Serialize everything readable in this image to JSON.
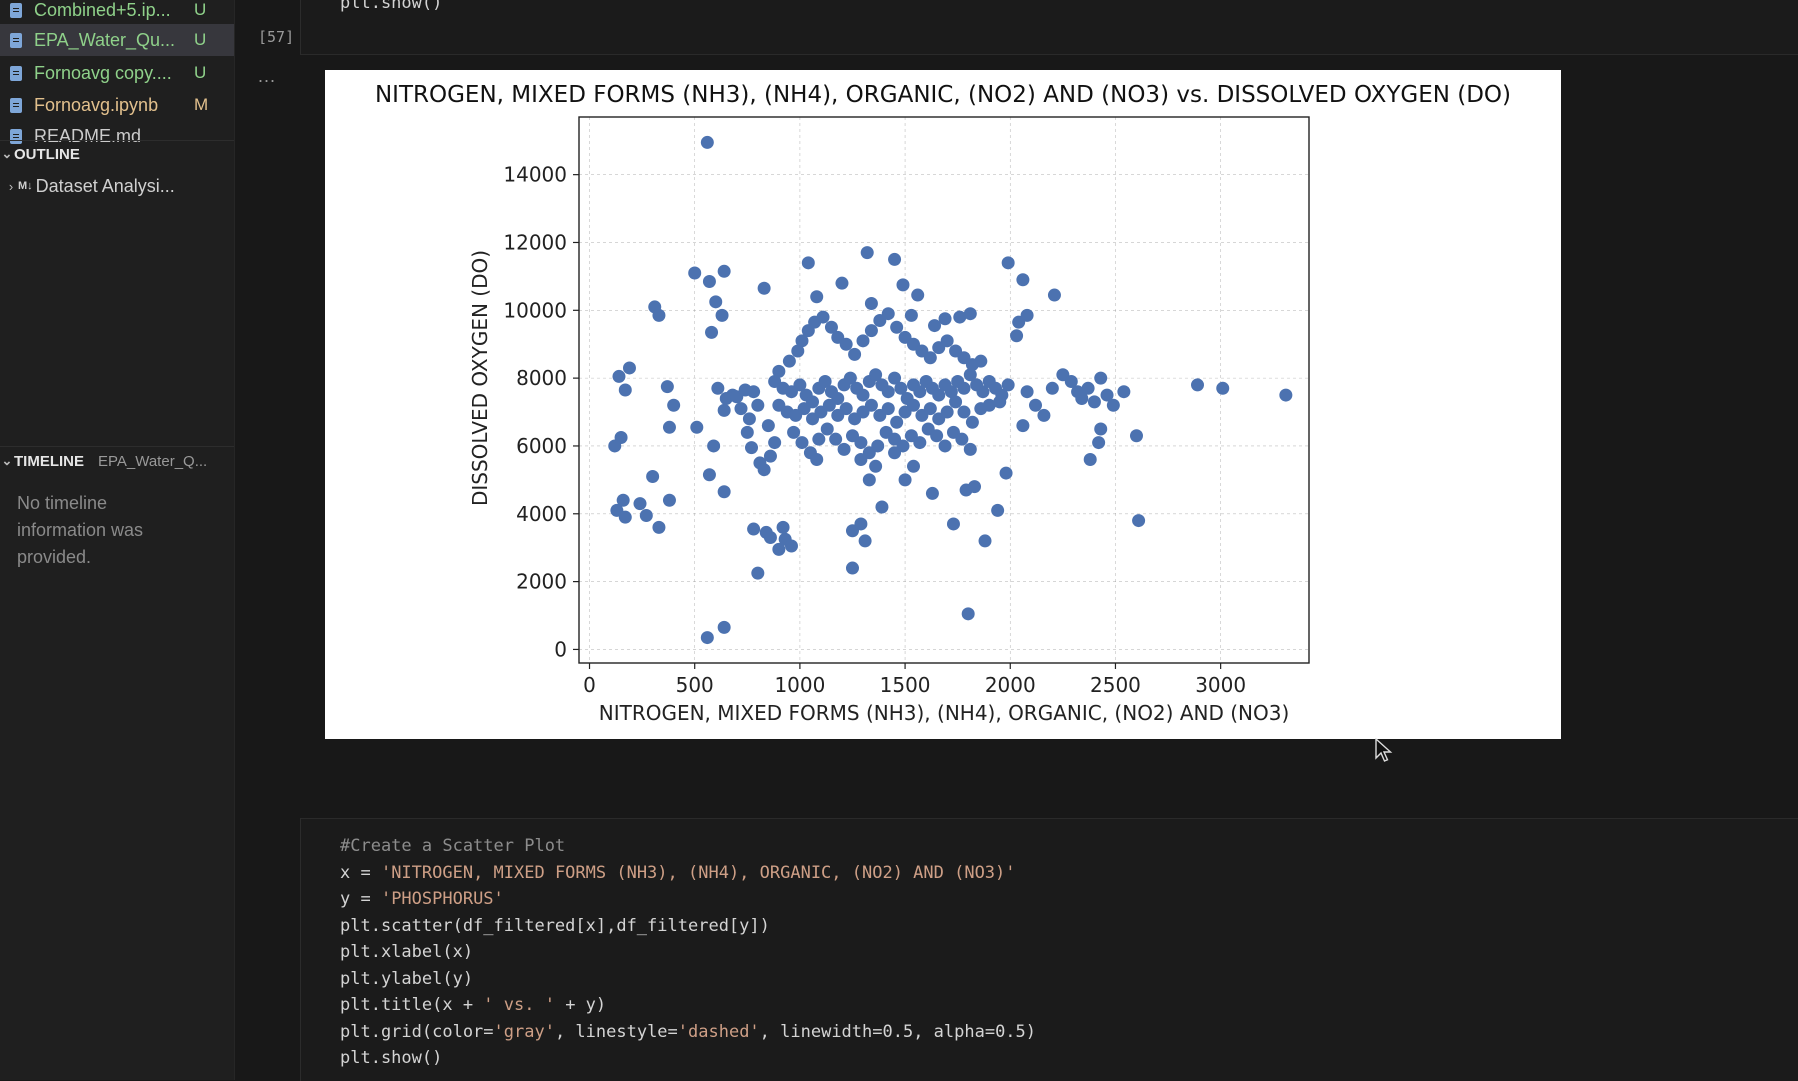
{
  "explorer": {
    "files": [
      {
        "name": "Combined+5.ip...",
        "status": "U",
        "status_color": "#8fd18a",
        "name_color": "#8fd18a",
        "active": false
      },
      {
        "name": "EPA_Water_Qu...",
        "status": "U",
        "status_color": "#8fd18a",
        "name_color": "#8fd18a",
        "active": true
      },
      {
        "name": "Fornoavg copy....",
        "status": "U",
        "status_color": "#8fd18a",
        "name_color": "#8fd18a",
        "active": false
      },
      {
        "name": "Fornoavg.ipynb",
        "status": "M",
        "status_color": "#e2c08d",
        "name_color": "#e2c08d",
        "active": false
      },
      {
        "name": "README.md",
        "status": "",
        "status_color": "#8fd18a",
        "name_color": "#cccccc",
        "active": false
      }
    ]
  },
  "outline": {
    "header": "OUTLINE",
    "item_badge": "M↓",
    "item_label": "Dataset Analysi..."
  },
  "timeline": {
    "header": "TIMELINE",
    "file": "EPA_Water_Q...",
    "message": "No timeline information was provided."
  },
  "cell_top": {
    "code": "plt.show()",
    "execution_count": "[57]",
    "output_more": "..."
  },
  "cell_bottom": {
    "lines": [
      [
        {
          "t": "#Create a Scatter Plot",
          "c": "cm"
        }
      ],
      [
        {
          "t": "x = "
        },
        {
          "t": "'NITROGEN, MIXED FORMS (NH3), (NH4), ORGANIC, (NO2) AND (NO3)'",
          "c": "str"
        }
      ],
      [
        {
          "t": "y = "
        },
        {
          "t": "'PHOSPHORUS'",
          "c": "str"
        }
      ],
      [
        {
          "t": "plt.scatter(df_filtered[x],df_filtered[y])"
        }
      ],
      [
        {
          "t": "plt.xlabel(x)"
        }
      ],
      [
        {
          "t": "plt.ylabel(y)"
        }
      ],
      [
        {
          "t": "plt.title(x + "
        },
        {
          "t": "' vs. '",
          "c": "str"
        },
        {
          "t": " + y)"
        }
      ],
      [
        {
          "t": "plt.grid(color="
        },
        {
          "t": "'gray'",
          "c": "str"
        },
        {
          "t": ", linestyle="
        },
        {
          "t": "'dashed'",
          "c": "str"
        },
        {
          "t": ", linewidth=0.5, alpha=0.5)"
        }
      ],
      [
        {
          "t": "plt.show()"
        }
      ]
    ]
  },
  "chart_data": {
    "type": "scatter",
    "title": "NITROGEN, MIXED FORMS (NH3), (NH4), ORGANIC, (NO2) AND (NO3) vs. DISSOLVED OXYGEN (DO)",
    "xlabel": "NITROGEN, MIXED FORMS (NH3), (NH4), ORGANIC, (NO2) AND (NO3)",
    "ylabel": "DISSOLVED OXYGEN (DO)",
    "xlim": [
      -50,
      3420
    ],
    "ylim": [
      -400,
      15700
    ],
    "xticks": [
      0,
      500,
      1000,
      1500,
      2000,
      2500,
      3000
    ],
    "yticks": [
      0,
      2000,
      4000,
      6000,
      8000,
      10000,
      12000,
      14000
    ],
    "grid": true,
    "grid_color": "#808080",
    "marker_color": "#4c72b0",
    "series": [
      {
        "points": [
          [
            560,
            14950
          ],
          [
            500,
            11100
          ],
          [
            640,
            11150
          ],
          [
            570,
            10850
          ],
          [
            310,
            10100
          ],
          [
            330,
            9850
          ],
          [
            600,
            10250
          ],
          [
            630,
            9850
          ],
          [
            580,
            9350
          ],
          [
            1040,
            11400
          ],
          [
            1320,
            11700
          ],
          [
            1450,
            11500
          ],
          [
            1990,
            11400
          ],
          [
            2060,
            10900
          ],
          [
            2210,
            10450
          ],
          [
            1200,
            10800
          ],
          [
            1490,
            10750
          ],
          [
            1340,
            10200
          ],
          [
            1560,
            10450
          ],
          [
            1080,
            10400
          ],
          [
            1810,
            9900
          ],
          [
            1760,
            9800
          ],
          [
            2040,
            9650
          ],
          [
            2030,
            9250
          ],
          [
            2080,
            9850
          ],
          [
            830,
            10650
          ],
          [
            1640,
            9550
          ],
          [
            140,
            8050
          ],
          [
            170,
            7650
          ],
          [
            190,
            8300
          ],
          [
            370,
            7750
          ],
          [
            400,
            7200
          ],
          [
            380,
            6550
          ],
          [
            510,
            6550
          ],
          [
            150,
            6250
          ],
          [
            120,
            6000
          ],
          [
            160,
            4400
          ],
          [
            130,
            4100
          ],
          [
            170,
            3900
          ],
          [
            240,
            4300
          ],
          [
            270,
            3950
          ],
          [
            330,
            3600
          ],
          [
            380,
            4400
          ],
          [
            300,
            5100
          ],
          [
            640,
            4650
          ],
          [
            590,
            6000
          ],
          [
            570,
            5150
          ],
          [
            610,
            7700
          ],
          [
            650,
            7400
          ],
          [
            640,
            7050
          ],
          [
            680,
            7500
          ],
          [
            700,
            7450
          ],
          [
            740,
            7650
          ],
          [
            780,
            7600
          ],
          [
            800,
            7200
          ],
          [
            850,
            6600
          ],
          [
            880,
            6100
          ],
          [
            860,
            5700
          ],
          [
            810,
            5500
          ],
          [
            830,
            5300
          ],
          [
            770,
            5950
          ],
          [
            750,
            6400
          ],
          [
            760,
            6800
          ],
          [
            720,
            7100
          ],
          [
            780,
            3550
          ],
          [
            840,
            3450
          ],
          [
            860,
            3300
          ],
          [
            900,
            2950
          ],
          [
            930,
            3250
          ],
          [
            960,
            3050
          ],
          [
            920,
            3600
          ],
          [
            800,
            2250
          ],
          [
            560,
            350
          ],
          [
            640,
            650
          ],
          [
            900,
            8200
          ],
          [
            950,
            8500
          ],
          [
            990,
            8800
          ],
          [
            1010,
            9100
          ],
          [
            1040,
            9400
          ],
          [
            1070,
            9650
          ],
          [
            1110,
            9800
          ],
          [
            1150,
            9500
          ],
          [
            1180,
            9200
          ],
          [
            1220,
            9000
          ],
          [
            1260,
            8700
          ],
          [
            1300,
            9100
          ],
          [
            1340,
            9400
          ],
          [
            1380,
            9700
          ],
          [
            1420,
            9900
          ],
          [
            1460,
            9500
          ],
          [
            1500,
            9200
          ],
          [
            1540,
            9000
          ],
          [
            1580,
            8800
          ],
          [
            1620,
            8600
          ],
          [
            1660,
            8900
          ],
          [
            1700,
            9100
          ],
          [
            1740,
            8800
          ],
          [
            1780,
            8600
          ],
          [
            1820,
            8400
          ],
          [
            1860,
            8500
          ],
          [
            1690,
            9750
          ],
          [
            1530,
            9850
          ],
          [
            880,
            7900
          ],
          [
            920,
            7700
          ],
          [
            960,
            7600
          ],
          [
            1000,
            7800
          ],
          [
            1030,
            7500
          ],
          [
            1060,
            7300
          ],
          [
            1090,
            7700
          ],
          [
            1120,
            7900
          ],
          [
            1150,
            7600
          ],
          [
            1180,
            7400
          ],
          [
            1210,
            7800
          ],
          [
            1240,
            8000
          ],
          [
            1270,
            7700
          ],
          [
            1300,
            7500
          ],
          [
            1330,
            7900
          ],
          [
            1360,
            8100
          ],
          [
            1390,
            7800
          ],
          [
            1420,
            7600
          ],
          [
            1450,
            8000
          ],
          [
            1480,
            7700
          ],
          [
            1510,
            7400
          ],
          [
            1540,
            7800
          ],
          [
            1570,
            7600
          ],
          [
            1600,
            7900
          ],
          [
            1630,
            7700
          ],
          [
            1660,
            7500
          ],
          [
            1690,
            7800
          ],
          [
            1720,
            7600
          ],
          [
            1750,
            7900
          ],
          [
            1780,
            7700
          ],
          [
            1810,
            8100
          ],
          [
            1840,
            7800
          ],
          [
            1870,
            7600
          ],
          [
            1900,
            7900
          ],
          [
            1930,
            7700
          ],
          [
            1960,
            7500
          ],
          [
            1990,
            7800
          ],
          [
            900,
            7200
          ],
          [
            940,
            7000
          ],
          [
            980,
            6900
          ],
          [
            1020,
            7100
          ],
          [
            1060,
            6800
          ],
          [
            1100,
            7000
          ],
          [
            1140,
            7200
          ],
          [
            1180,
            6900
          ],
          [
            1220,
            7100
          ],
          [
            1260,
            6800
          ],
          [
            1300,
            7000
          ],
          [
            1340,
            7200
          ],
          [
            1380,
            6900
          ],
          [
            1420,
            7100
          ],
          [
            1460,
            6700
          ],
          [
            1500,
            7000
          ],
          [
            1540,
            7200
          ],
          [
            1580,
            6900
          ],
          [
            1620,
            7100
          ],
          [
            1660,
            6800
          ],
          [
            1700,
            7000
          ],
          [
            1740,
            7300
          ],
          [
            1780,
            7000
          ],
          [
            1820,
            6700
          ],
          [
            1860,
            7100
          ],
          [
            1900,
            7200
          ],
          [
            1950,
            7300
          ],
          [
            970,
            6400
          ],
          [
            1010,
            6100
          ],
          [
            1050,
            5800
          ],
          [
            1090,
            6200
          ],
          [
            1130,
            6500
          ],
          [
            1170,
            6200
          ],
          [
            1210,
            5900
          ],
          [
            1250,
            6300
          ],
          [
            1290,
            6100
          ],
          [
            1330,
            5800
          ],
          [
            1370,
            6000
          ],
          [
            1410,
            6400
          ],
          [
            1450,
            6200
          ],
          [
            1490,
            6000
          ],
          [
            1530,
            6300
          ],
          [
            1570,
            6100
          ],
          [
            1610,
            6500
          ],
          [
            1650,
            6300
          ],
          [
            1690,
            6000
          ],
          [
            1730,
            6400
          ],
          [
            1770,
            6200
          ],
          [
            1810,
            5900
          ],
          [
            1080,
            5600
          ],
          [
            1290,
            5600
          ],
          [
            1330,
            5000
          ],
          [
            1360,
            5400
          ],
          [
            1390,
            4200
          ],
          [
            1450,
            5800
          ],
          [
            1500,
            5000
          ],
          [
            1540,
            5400
          ],
          [
            1630,
            4600
          ],
          [
            1730,
            3700
          ],
          [
            1790,
            4700
          ],
          [
            1830,
            4800
          ],
          [
            1880,
            3200
          ],
          [
            1940,
            4100
          ],
          [
            1980,
            5200
          ],
          [
            1250,
            3500
          ],
          [
            1290,
            3700
          ],
          [
            1310,
            3200
          ],
          [
            1250,
            2400
          ],
          [
            1800,
            1050
          ],
          [
            2080,
            7600
          ],
          [
            2120,
            7200
          ],
          [
            2160,
            6900
          ],
          [
            2200,
            7700
          ],
          [
            2250,
            8100
          ],
          [
            2290,
            7900
          ],
          [
            2320,
            7600
          ],
          [
            2340,
            7400
          ],
          [
            2370,
            7700
          ],
          [
            2400,
            7300
          ],
          [
            2430,
            8000
          ],
          [
            2460,
            7500
          ],
          [
            2490,
            7200
          ],
          [
            2540,
            7600
          ],
          [
            2060,
            6600
          ],
          [
            2380,
            5600
          ],
          [
            2420,
            6100
          ],
          [
            2430,
            6500
          ],
          [
            2600,
            6300
          ],
          [
            2610,
            3800
          ],
          [
            2890,
            7800
          ],
          [
            3010,
            7700
          ],
          [
            3310,
            7500
          ]
        ]
      }
    ]
  }
}
